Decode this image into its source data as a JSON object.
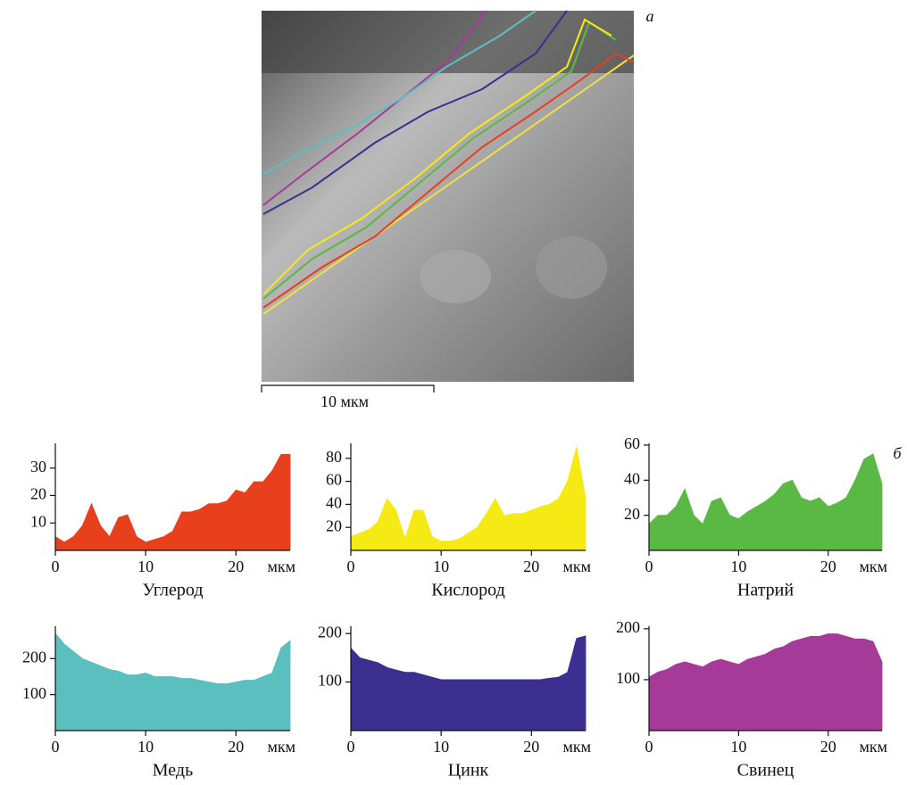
{
  "image": {
    "label": "a",
    "scale_bar": "10 мкм"
  },
  "panel_label": "б",
  "chart_data": [
    {
      "type": "area",
      "title": "Углерод",
      "xlabel": "мкм",
      "color": "#e8401c",
      "x": [
        0,
        1,
        2,
        3,
        4,
        5,
        6,
        7,
        8,
        9,
        10,
        11,
        12,
        13,
        14,
        15,
        16,
        17,
        18,
        19,
        20,
        21,
        22,
        23,
        24,
        25,
        26
      ],
      "values": [
        5,
        3,
        5,
        9,
        17,
        9,
        5,
        12,
        13,
        5,
        3,
        4,
        5,
        7,
        14,
        14,
        15,
        17,
        17,
        18,
        22,
        21,
        25,
        25,
        29,
        35,
        35
      ],
      "xlim": [
        0,
        26
      ],
      "xticks": [
        0,
        10,
        20
      ],
      "ylim": [
        0,
        39
      ],
      "yticks": [
        10,
        20,
        30
      ]
    },
    {
      "type": "area",
      "title": "Кислород",
      "xlabel": "мкм",
      "color": "#f5ea14",
      "x": [
        0,
        1,
        2,
        3,
        4,
        5,
        6,
        7,
        8,
        9,
        10,
        11,
        12,
        13,
        14,
        15,
        16,
        17,
        18,
        19,
        20,
        21,
        22,
        23,
        24,
        25,
        26
      ],
      "values": [
        12,
        15,
        18,
        25,
        45,
        35,
        10,
        35,
        35,
        12,
        8,
        8,
        10,
        15,
        20,
        32,
        45,
        30,
        32,
        32,
        35,
        38,
        40,
        45,
        60,
        90,
        45
      ],
      "xlim": [
        0,
        26
      ],
      "xticks": [
        0,
        10,
        20
      ],
      "ylim": [
        0,
        93
      ],
      "yticks": [
        20,
        40,
        60,
        80
      ]
    },
    {
      "type": "area",
      "title": "Натрий",
      "xlabel": "мкм",
      "color": "#5ab845",
      "x": [
        0,
        1,
        2,
        3,
        4,
        5,
        6,
        7,
        8,
        9,
        10,
        11,
        12,
        13,
        14,
        15,
        16,
        17,
        18,
        19,
        20,
        21,
        22,
        23,
        24,
        25,
        26
      ],
      "values": [
        15,
        20,
        20,
        25,
        35,
        20,
        15,
        28,
        30,
        20,
        18,
        22,
        25,
        28,
        32,
        38,
        40,
        30,
        28,
        30,
        25,
        27,
        30,
        40,
        52,
        55,
        38
      ],
      "xlim": [
        0,
        26
      ],
      "xticks": [
        0,
        10,
        20
      ],
      "ylim": [
        0,
        61
      ],
      "yticks": [
        20,
        40,
        60
      ]
    },
    {
      "type": "area",
      "title": "Медь",
      "xlabel": "мкм",
      "color": "#5bbfbf",
      "x": [
        0,
        1,
        2,
        3,
        4,
        5,
        6,
        7,
        8,
        9,
        10,
        11,
        12,
        13,
        14,
        15,
        16,
        17,
        18,
        19,
        20,
        21,
        22,
        23,
        24,
        25,
        26
      ],
      "values": [
        270,
        240,
        220,
        200,
        190,
        180,
        170,
        165,
        155,
        155,
        160,
        150,
        150,
        150,
        145,
        145,
        140,
        135,
        130,
        130,
        135,
        140,
        140,
        150,
        160,
        230,
        250
      ],
      "xlim": [
        0,
        26
      ],
      "xticks": [
        0,
        10,
        20
      ],
      "ylim": [
        0,
        290
      ],
      "yticks": [
        100,
        200
      ]
    },
    {
      "type": "area",
      "title": "Цинк",
      "xlabel": "мкм",
      "color": "#3b2f8f",
      "x": [
        0,
        1,
        2,
        3,
        4,
        5,
        6,
        7,
        8,
        9,
        10,
        11,
        12,
        13,
        14,
        15,
        16,
        17,
        18,
        19,
        20,
        21,
        22,
        23,
        24,
        25,
        26
      ],
      "values": [
        170,
        150,
        145,
        140,
        130,
        125,
        120,
        120,
        115,
        110,
        105,
        105,
        105,
        105,
        105,
        105,
        105,
        105,
        105,
        105,
        105,
        105,
        108,
        110,
        120,
        190,
        195
      ],
      "xlim": [
        0,
        26
      ],
      "xticks": [
        0,
        10,
        20
      ],
      "ylim": [
        0,
        215
      ],
      "yticks": [
        100,
        200
      ]
    },
    {
      "type": "area",
      "title": "Свинец",
      "xlabel": "мкм",
      "color": "#a53a98",
      "x": [
        0,
        1,
        2,
        3,
        4,
        5,
        6,
        7,
        8,
        9,
        10,
        11,
        12,
        13,
        14,
        15,
        16,
        17,
        18,
        19,
        20,
        21,
        22,
        23,
        24,
        25,
        26
      ],
      "values": [
        105,
        115,
        120,
        130,
        135,
        130,
        125,
        135,
        140,
        135,
        130,
        140,
        145,
        150,
        160,
        165,
        175,
        180,
        185,
        185,
        190,
        190,
        185,
        180,
        180,
        175,
        135
      ],
      "xlim": [
        0,
        26
      ],
      "xticks": [
        0,
        10,
        20
      ],
      "ylim": [
        0,
        205
      ],
      "yticks": [
        100,
        200
      ]
    }
  ]
}
